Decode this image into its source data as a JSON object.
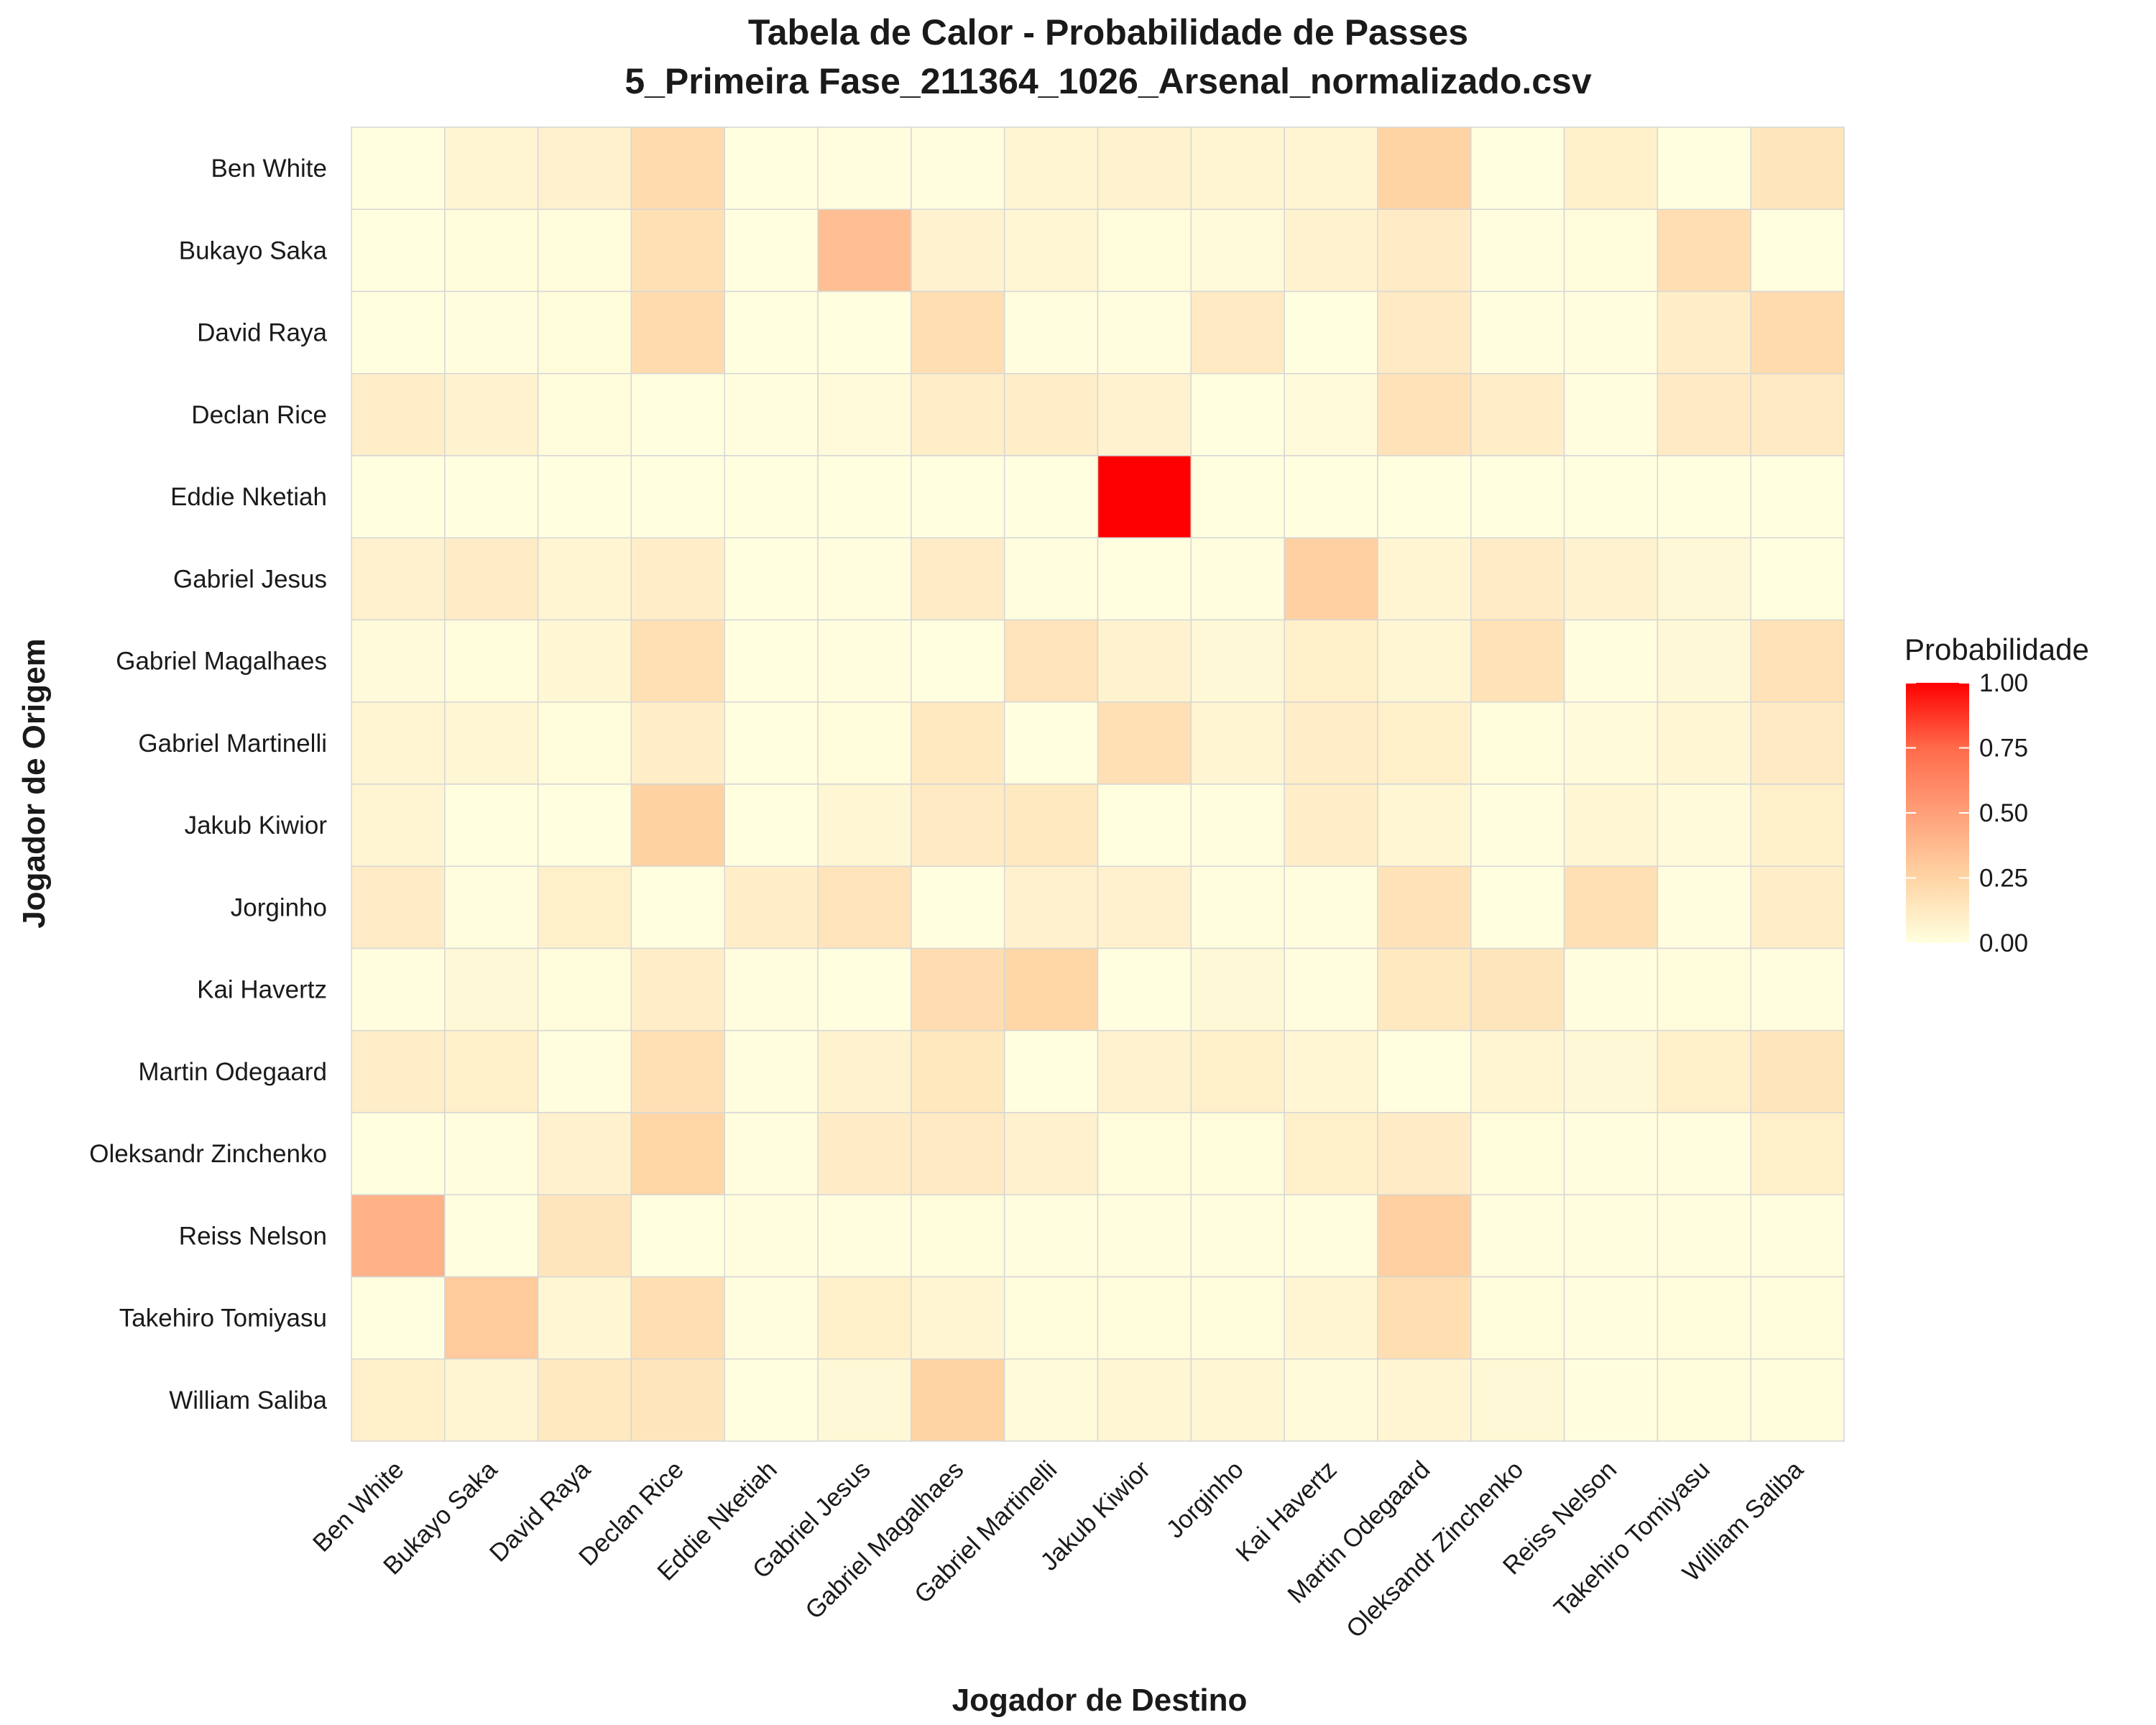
{
  "chart_data": {
    "type": "heatmap",
    "title": "Tabela de Calor - Probabilidade de Passes",
    "subtitle": "5_Primeira Fase_211364_1026_Arsenal_normalizado.csv",
    "xlabel": "Jogador de Destino",
    "ylabel": "Jogador de Origem",
    "legend": {
      "title": "Probabilidade",
      "ticks": [
        "1.00",
        "0.75",
        "0.50",
        "0.25",
        "0.00"
      ],
      "colors": [
        "#FFFFE0",
        "#FF0000"
      ],
      "position": "right"
    },
    "x": [
      "Ben White",
      "Bukayo Saka",
      "David Raya",
      "Declan Rice",
      "Eddie Nketiah",
      "Gabriel Jesus",
      "Gabriel Magalhaes",
      "Gabriel Martinelli",
      "Jakub Kiwior",
      "Jorginho",
      "Kai Havertz",
      "Martin Odegaard",
      "Oleksandr Zinchenko",
      "Reiss Nelson",
      "Takehiro Tomiyasu",
      "William Saliba"
    ],
    "y": [
      "Ben White",
      "Bukayo Saka",
      "David Raya",
      "Declan Rice",
      "Eddie Nketiah",
      "Gabriel Jesus",
      "Gabriel Magalhaes",
      "Gabriel Martinelli",
      "Jakub Kiwior",
      "Jorginho",
      "Kai Havertz",
      "Martin Odegaard",
      "Oleksandr Zinchenko",
      "Reiss Nelson",
      "Takehiro Tomiyasu",
      "William Saliba"
    ],
    "values": [
      [
        0.0,
        0.06,
        0.08,
        0.21,
        0.0,
        0.01,
        0.01,
        0.06,
        0.07,
        0.06,
        0.06,
        0.25,
        0.0,
        0.09,
        0.0,
        0.15
      ],
      [
        0.0,
        0.02,
        0.02,
        0.18,
        0.0,
        0.35,
        0.07,
        0.05,
        0.02,
        0.03,
        0.07,
        0.11,
        0.01,
        0.02,
        0.19,
        0.0
      ],
      [
        0.0,
        0.01,
        0.02,
        0.21,
        0.0,
        0.0,
        0.19,
        0.01,
        0.01,
        0.12,
        0.0,
        0.12,
        0.01,
        0.01,
        0.1,
        0.21
      ],
      [
        0.1,
        0.07,
        0.02,
        0.0,
        0.01,
        0.03,
        0.1,
        0.1,
        0.07,
        0.0,
        0.03,
        0.17,
        0.1,
        0.01,
        0.12,
        0.12
      ],
      [
        0.0,
        0.0,
        0.0,
        0.0,
        0.0,
        0.0,
        0.0,
        0.0,
        1.0,
        0.0,
        0.0,
        0.0,
        0.0,
        0.0,
        0.0,
        0.0
      ],
      [
        0.08,
        0.11,
        0.06,
        0.1,
        0.0,
        0.01,
        0.11,
        0.01,
        0.0,
        0.01,
        0.27,
        0.06,
        0.11,
        0.07,
        0.04,
        0.0
      ],
      [
        0.03,
        0.02,
        0.05,
        0.18,
        0.0,
        0.01,
        0.0,
        0.16,
        0.07,
        0.04,
        0.09,
        0.05,
        0.17,
        0.01,
        0.04,
        0.17
      ],
      [
        0.06,
        0.05,
        0.02,
        0.1,
        0.0,
        0.02,
        0.13,
        0.0,
        0.18,
        0.06,
        0.1,
        0.09,
        0.02,
        0.03,
        0.05,
        0.12
      ],
      [
        0.06,
        0.0,
        0.0,
        0.26,
        0.0,
        0.05,
        0.12,
        0.13,
        0.0,
        0.01,
        0.1,
        0.05,
        0.01,
        0.05,
        0.03,
        0.09
      ],
      [
        0.11,
        0.01,
        0.09,
        0.0,
        0.1,
        0.16,
        0.0,
        0.08,
        0.08,
        0.01,
        0.01,
        0.17,
        0.0,
        0.18,
        0.01,
        0.1
      ],
      [
        0.01,
        0.04,
        0.02,
        0.1,
        0.01,
        0.0,
        0.2,
        0.24,
        0.0,
        0.04,
        0.01,
        0.13,
        0.15,
        0.01,
        0.02,
        0.01
      ],
      [
        0.1,
        0.09,
        0.01,
        0.18,
        0.01,
        0.07,
        0.14,
        0.0,
        0.07,
        0.09,
        0.05,
        0.0,
        0.06,
        0.04,
        0.09,
        0.15
      ],
      [
        0.0,
        0.01,
        0.08,
        0.24,
        0.01,
        0.11,
        0.12,
        0.08,
        0.02,
        0.02,
        0.09,
        0.11,
        0.02,
        0.01,
        0.01,
        0.09
      ],
      [
        0.42,
        0.0,
        0.15,
        0.0,
        0.01,
        0.01,
        0.02,
        0.01,
        0.01,
        0.01,
        0.01,
        0.27,
        0.01,
        0.01,
        0.01,
        0.01
      ],
      [
        0.0,
        0.3,
        0.05,
        0.19,
        0.01,
        0.09,
        0.06,
        0.02,
        0.02,
        0.02,
        0.06,
        0.19,
        0.02,
        0.01,
        0.02,
        0.02
      ],
      [
        0.09,
        0.06,
        0.13,
        0.15,
        0.0,
        0.04,
        0.25,
        0.03,
        0.05,
        0.05,
        0.03,
        0.06,
        0.04,
        0.01,
        0.02,
        0.02
      ]
    ]
  }
}
